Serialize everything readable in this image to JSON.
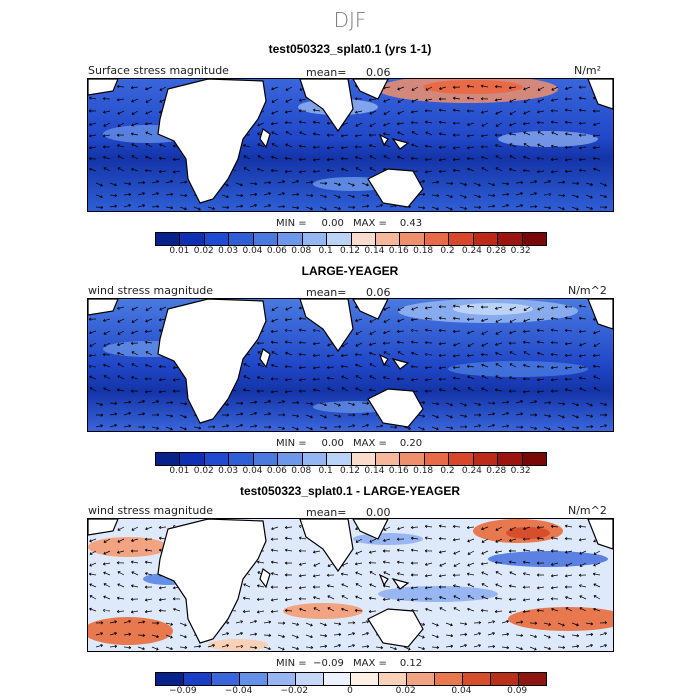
{
  "season": "DJF",
  "panels": [
    {
      "title": "test050323_splat0.1 (yrs 1-1)",
      "variable": "Surface stress magnitude",
      "mean_label": "mean=",
      "mean_value": "0.06",
      "units": "N/m²",
      "min_label": "MIN =",
      "min_value": "0.00",
      "max_label": "MAX =",
      "max_value": "0.43",
      "ticks": [
        "0.01",
        "0.02",
        "0.03",
        "0.04",
        "0.06",
        "0.08",
        "0.1",
        "0.12",
        "0.14",
        "0.16",
        "0.18",
        "0.2",
        "0.24",
        "0.28",
        "0.32"
      ],
      "palette": "seq"
    },
    {
      "title": "LARGE-YEAGER",
      "variable": "wind stress magnitude",
      "mean_label": "mean=",
      "mean_value": "0.06",
      "units": "N/m^2",
      "min_label": "MIN =",
      "min_value": "0.00",
      "max_label": "MAX =",
      "max_value": "0.20",
      "ticks": [
        "0.01",
        "0.02",
        "0.03",
        "0.04",
        "0.06",
        "0.08",
        "0.1",
        "0.12",
        "0.14",
        "0.16",
        "0.18",
        "0.2",
        "0.24",
        "0.28",
        "0.32"
      ],
      "palette": "seq"
    },
    {
      "title": "test050323_splat0.1 - LARGE-YEAGER",
      "variable": "wind stress magnitude",
      "mean_label": "mean=",
      "mean_value": "0.00",
      "units": "N/m^2",
      "min_label": "MIN =",
      "min_value": "−0.09",
      "max_label": "MAX =",
      "max_value": "0.12",
      "ticks": [
        "−0.09",
        "−0.04",
        "−0.02",
        "0",
        "0.02",
        "0.04",
        "0.09"
      ],
      "palette": "div"
    }
  ],
  "colors": {
    "seq": [
      "#08228c",
      "#1030b4",
      "#1f4ad2",
      "#2f5fd6",
      "#4a7ae0",
      "#6d98ea",
      "#95b6f2",
      "#bcd3f8",
      "#f9dccb",
      "#f6b79a",
      "#f08f6c",
      "#e86a46",
      "#d9472a",
      "#bd2a18",
      "#9c1410",
      "#7a0808"
    ],
    "div": [
      "#08228c",
      "#1a3fc6",
      "#3a66dc",
      "#6590e8",
      "#98b6f2",
      "#c6d8fa",
      "#ecf2ff",
      "#fff0e6",
      "#f9d0b8",
      "#f2a482",
      "#e8784e",
      "#d64e2b",
      "#b8301a",
      "#8e1610"
    ],
    "land": "#ffffff",
    "ocean_low": "#2f5fd6"
  }
}
